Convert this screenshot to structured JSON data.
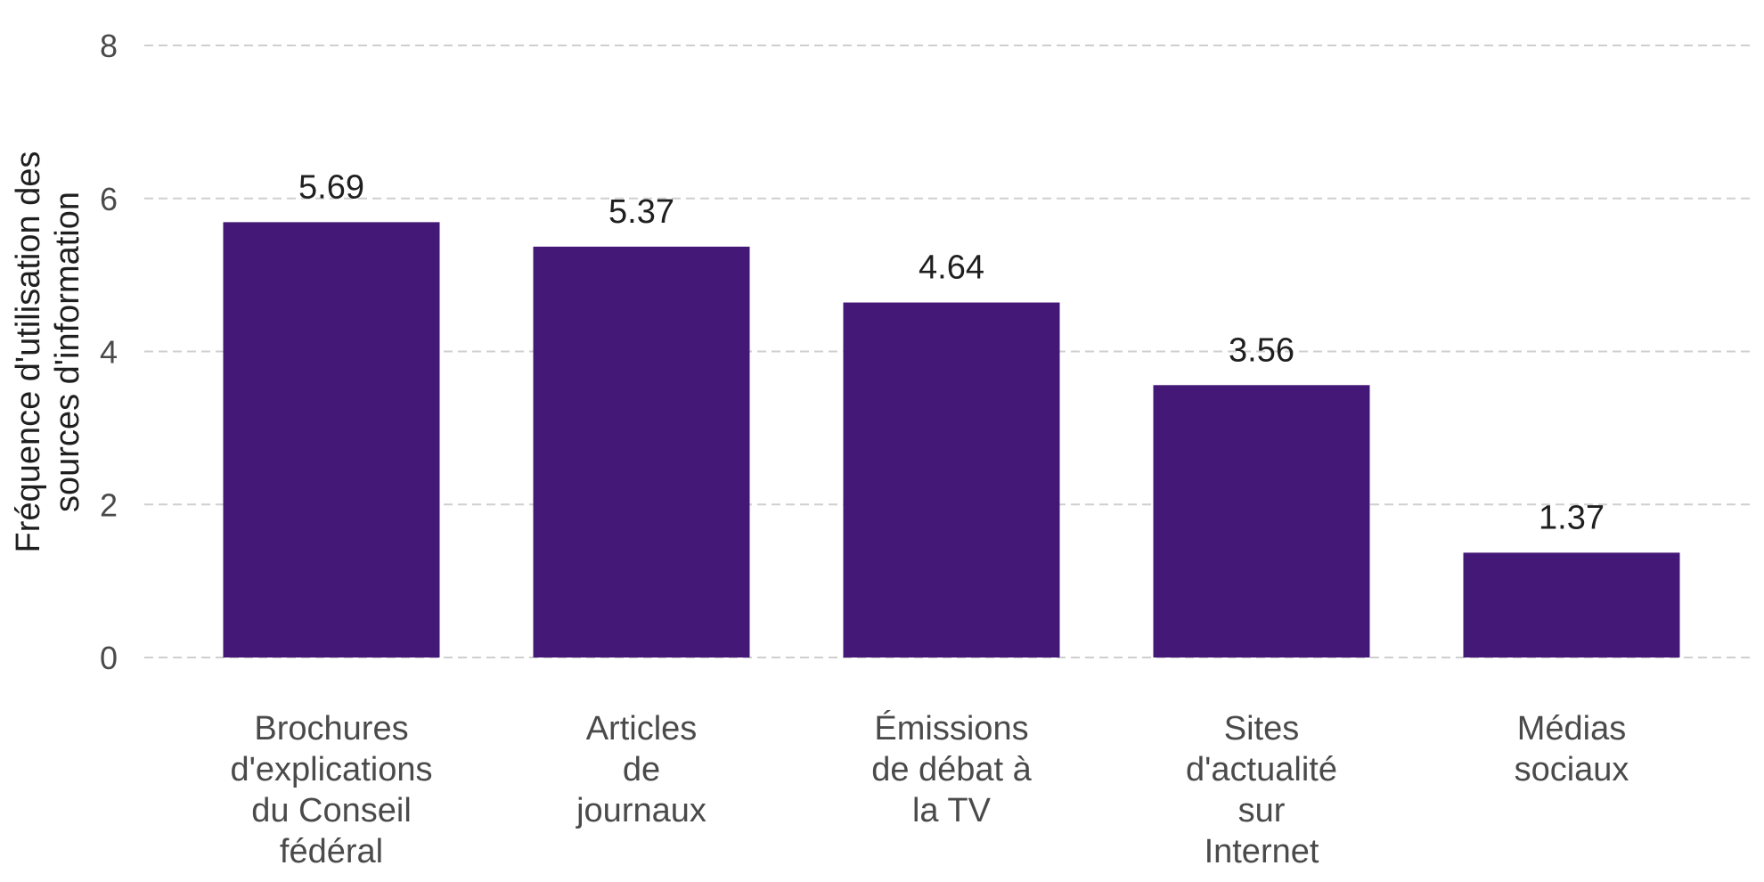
{
  "chart_data": {
    "type": "bar",
    "title": "",
    "xlabel": "",
    "ylabel": "Fréquence d'utilisation des sources d'information",
    "ylabel_lines": [
      "Fréquence d'utilisation des",
      "sources d'information"
    ],
    "categories": [
      "Brochures d'explications du Conseil fédéral",
      "Articles de journaux",
      "Émissions de débat à la TV",
      "Sites d'actualité sur Internet",
      "Médias sociaux"
    ],
    "category_lines": [
      [
        "Brochures",
        "d'explications",
        "du Conseil",
        "fédéral"
      ],
      [
        "Articles",
        "de",
        "journaux"
      ],
      [
        "Émissions",
        "de débat à",
        "la TV"
      ],
      [
        "Sites",
        "d'actualité",
        "sur",
        "Internet"
      ],
      [
        "Médias",
        "sociaux"
      ]
    ],
    "values": [
      5.69,
      5.37,
      4.64,
      3.56,
      1.37
    ],
    "value_labels": [
      "5.69",
      "5.37",
      "4.64",
      "3.56",
      "1.37"
    ],
    "ylim": [
      0,
      8
    ],
    "yticks": [
      0,
      2,
      4,
      6,
      8
    ],
    "ytick_labels": [
      "0",
      "2",
      "4",
      "6",
      "8"
    ],
    "grid": true,
    "legend": "none",
    "colors": {
      "bar": "#441877",
      "grid": "#cfcfcf",
      "text": "#4a4a4a"
    }
  }
}
